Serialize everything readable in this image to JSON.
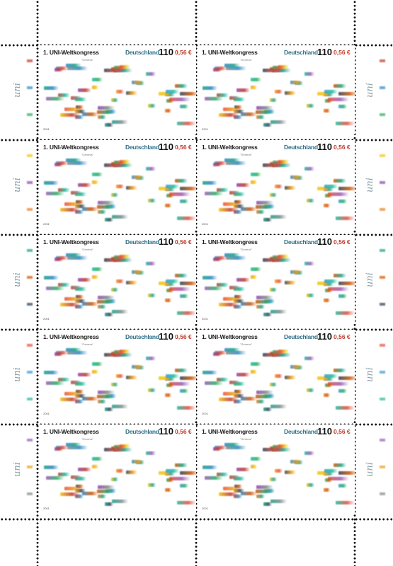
{
  "stamp": {
    "title": "1. UNI-Weltkongress",
    "country": "Deutschland",
    "value_pf": "110",
    "value_eur": "0,56 €",
    "subtitle": "\"Geneva\"",
    "year": "2001"
  },
  "margin": {
    "logo_text": "uni"
  },
  "flag_colors": [
    "#c0392b",
    "#2e86c1",
    "#27ae60",
    "#f1c40f",
    "#8e44ad",
    "#e67e22",
    "#16a085",
    "#d35400",
    "#2c3e50",
    "#e74c3c",
    "#3498db",
    "#1abc9c",
    "#9b59b6",
    "#f39c12",
    "#7f8c8d"
  ]
}
